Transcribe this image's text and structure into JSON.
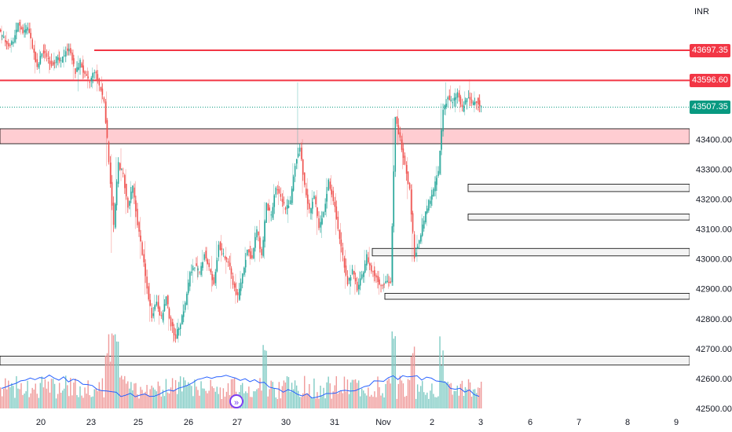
{
  "currency": "INR",
  "colors": {
    "up": "#26a69a",
    "down": "#ef5350",
    "resistance": "#f23645",
    "zone_fill": "#ffcdd2",
    "current_price": "#089981",
    "volume_ma": "#2962ff"
  },
  "chart_data": {
    "type": "candlestick",
    "x_ticks": [
      "20",
      "23",
      "25",
      "26",
      "27",
      "30",
      "31",
      "Nov",
      "2",
      "3",
      "6",
      "7",
      "8",
      "9"
    ],
    "y_ticks": [
      "43400.00",
      "43300.00",
      "43200.00",
      "43100.00",
      "43000.00",
      "42900.00",
      "42800.00",
      "42700.00",
      "42600.00",
      "42500.00"
    ],
    "ylim": [
      42500,
      43760
    ],
    "price_labels": {
      "level_1": "43697.35",
      "level_2": "43596.60",
      "current": "43507.35"
    },
    "horizontal_lines": [
      43697.35,
      43596.6
    ],
    "current_price": 43507.35,
    "supply_zone": [
      43385,
      43435
    ],
    "demand_boxes": [
      {
        "from": "2",
        "low": 43225,
        "high": 43250
      },
      {
        "from": "2",
        "low": 43130,
        "high": 43150
      },
      {
        "from": "31",
        "low": 43010,
        "high": 43035
      },
      {
        "from": "Nov",
        "low": 42865,
        "high": 42885
      },
      {
        "from": "20",
        "low": 42645,
        "high": 42675
      }
    ],
    "series": [
      {
        "type": "ohlc",
        "points": [
          [
            0,
            43760,
            43780,
            43720,
            43735
          ],
          [
            1,
            43735,
            43760,
            43700,
            43715
          ],
          [
            2,
            43715,
            43740,
            43690,
            43730
          ],
          [
            3,
            43730,
            43790,
            43720,
            43785
          ],
          [
            4,
            43785,
            43800,
            43750,
            43760
          ],
          [
            5,
            43760,
            43790,
            43740,
            43775
          ],
          [
            6,
            43775,
            43790,
            43700,
            43710
          ],
          [
            7,
            43710,
            43730,
            43620,
            43635
          ],
          [
            8,
            43635,
            43700,
            43620,
            43690
          ],
          [
            9,
            43690,
            43720,
            43660,
            43680
          ],
          [
            10,
            43680,
            43700,
            43620,
            43650
          ],
          [
            11,
            43650,
            43690,
            43630,
            43670
          ],
          [
            12,
            43670,
            43700,
            43640,
            43655
          ],
          [
            13,
            43655,
            43710,
            43640,
            43700
          ],
          [
            14,
            43700,
            43720,
            43680,
            43695
          ],
          [
            15,
            43695,
            43700,
            43600,
            43620
          ],
          [
            16,
            43620,
            43680,
            43560,
            43660
          ],
          [
            17,
            43660,
            43680,
            43600,
            43610
          ],
          [
            18,
            43610,
            43640,
            43570,
            43590
          ],
          [
            19,
            43590,
            43640,
            43570,
            43630
          ],
          [
            20,
            43630,
            43650,
            43560,
            43580
          ],
          [
            21,
            43580,
            43610,
            43520,
            43530
          ],
          [
            22,
            43530,
            43560,
            43310,
            43330
          ],
          [
            23,
            43330,
            43350,
            43020,
            43110
          ],
          [
            24,
            43110,
            43340,
            43100,
            43320
          ],
          [
            25,
            43320,
            43370,
            43260,
            43280
          ],
          [
            26,
            43280,
            43300,
            43150,
            43170
          ],
          [
            27,
            43170,
            43260,
            43140,
            43240
          ],
          [
            28,
            43240,
            43260,
            43100,
            43120
          ],
          [
            29,
            43120,
            43140,
            43000,
            43020
          ],
          [
            30,
            43020,
            43060,
            42880,
            42900
          ],
          [
            31,
            42900,
            42920,
            42790,
            42810
          ],
          [
            32,
            42810,
            42880,
            42790,
            42860
          ],
          [
            33,
            42860,
            42880,
            42780,
            42800
          ],
          [
            34,
            42800,
            42880,
            42780,
            42870
          ],
          [
            35,
            42870,
            42880,
            42760,
            42780
          ],
          [
            36,
            42780,
            42800,
            42720,
            42740
          ],
          [
            37,
            42740,
            42800,
            42720,
            42790
          ],
          [
            38,
            42790,
            42860,
            42780,
            42850
          ],
          [
            39,
            42850,
            42960,
            42830,
            42950
          ],
          [
            40,
            42950,
            43000,
            42920,
            42980
          ],
          [
            41,
            42980,
            43010,
            42930,
            42950
          ],
          [
            42,
            42950,
            43030,
            42940,
            43020
          ],
          [
            43,
            43020,
            43040,
            42960,
            42970
          ],
          [
            44,
            42970,
            43010,
            42890,
            42910
          ],
          [
            45,
            42910,
            43060,
            42900,
            43050
          ],
          [
            46,
            43050,
            43080,
            42990,
            43010
          ],
          [
            47,
            43010,
            43040,
            42950,
            42990
          ],
          [
            48,
            42990,
            43020,
            42900,
            42920
          ],
          [
            49,
            42920,
            42950,
            42850,
            42870
          ],
          [
            50,
            42870,
            42960,
            42860,
            42950
          ],
          [
            51,
            42950,
            43040,
            42940,
            43030
          ],
          [
            52,
            43030,
            43060,
            42980,
            43000
          ],
          [
            53,
            43000,
            43110,
            42990,
            43100
          ],
          [
            54,
            43100,
            43130,
            42990,
            43010
          ],
          [
            55,
            43010,
            43190,
            43000,
            43180
          ],
          [
            56,
            43180,
            43200,
            43120,
            43140
          ],
          [
            57,
            43140,
            43250,
            43130,
            43240
          ],
          [
            58,
            43240,
            43260,
            43180,
            43200
          ],
          [
            59,
            43200,
            43230,
            43150,
            43170
          ],
          [
            60,
            43170,
            43210,
            43120,
            43190
          ],
          [
            61,
            43190,
            43320,
            43180,
            43310
          ],
          [
            62,
            43310,
            43590,
            43300,
            43380
          ],
          [
            63,
            43380,
            43400,
            43220,
            43240
          ],
          [
            64,
            43240,
            43270,
            43140,
            43160
          ],
          [
            65,
            43160,
            43230,
            43130,
            43210
          ],
          [
            66,
            43210,
            43230,
            43080,
            43100
          ],
          [
            67,
            43100,
            43160,
            43070,
            43150
          ],
          [
            68,
            43150,
            43270,
            43140,
            43260
          ],
          [
            69,
            43260,
            43280,
            43180,
            43200
          ],
          [
            70,
            43200,
            43220,
            43080,
            43100
          ],
          [
            71,
            43100,
            43120,
            42990,
            43010
          ],
          [
            72,
            43010,
            43030,
            42900,
            42920
          ],
          [
            73,
            42920,
            42980,
            42880,
            42960
          ],
          [
            74,
            42960,
            42980,
            42880,
            42900
          ],
          [
            75,
            42900,
            42960,
            42880,
            42940
          ],
          [
            76,
            42940,
            43030,
            42920,
            43010
          ],
          [
            77,
            43010,
            43040,
            42940,
            42960
          ],
          [
            78,
            42960,
            42990,
            42920,
            42940
          ],
          [
            79,
            42940,
            42960,
            42880,
            42910
          ],
          [
            80,
            42910,
            42950,
            42890,
            42930
          ],
          [
            81,
            42930,
            42950,
            42900,
            42920
          ],
          [
            82,
            42920,
            43470,
            42910,
            43470
          ],
          [
            83,
            43470,
            43500,
            43380,
            43400
          ],
          [
            84,
            43400,
            43420,
            43300,
            43320
          ],
          [
            85,
            43320,
            43340,
            43200,
            43230
          ],
          [
            86,
            43230,
            43250,
            42990,
            43010
          ],
          [
            87,
            43010,
            43080,
            42990,
            43060
          ],
          [
            88,
            43060,
            43150,
            43050,
            43130
          ],
          [
            89,
            43130,
            43200,
            43110,
            43190
          ],
          [
            90,
            43190,
            43240,
            43170,
            43230
          ],
          [
            91,
            43230,
            43310,
            43200,
            43290
          ],
          [
            92,
            43290,
            43520,
            43280,
            43500
          ],
          [
            93,
            43500,
            43590,
            43480,
            43540
          ],
          [
            94,
            43540,
            43580,
            43500,
            43520
          ],
          [
            95,
            43520,
            43570,
            43490,
            43555
          ],
          [
            96,
            43555,
            43580,
            43490,
            43500
          ],
          [
            97,
            43500,
            43560,
            43480,
            43540
          ],
          [
            98,
            43540,
            43600,
            43510,
            43520
          ],
          [
            99,
            43520,
            43560,
            43490,
            43530
          ],
          [
            100,
            43530,
            43550,
            43490,
            43507
          ]
        ]
      }
    ]
  }
}
